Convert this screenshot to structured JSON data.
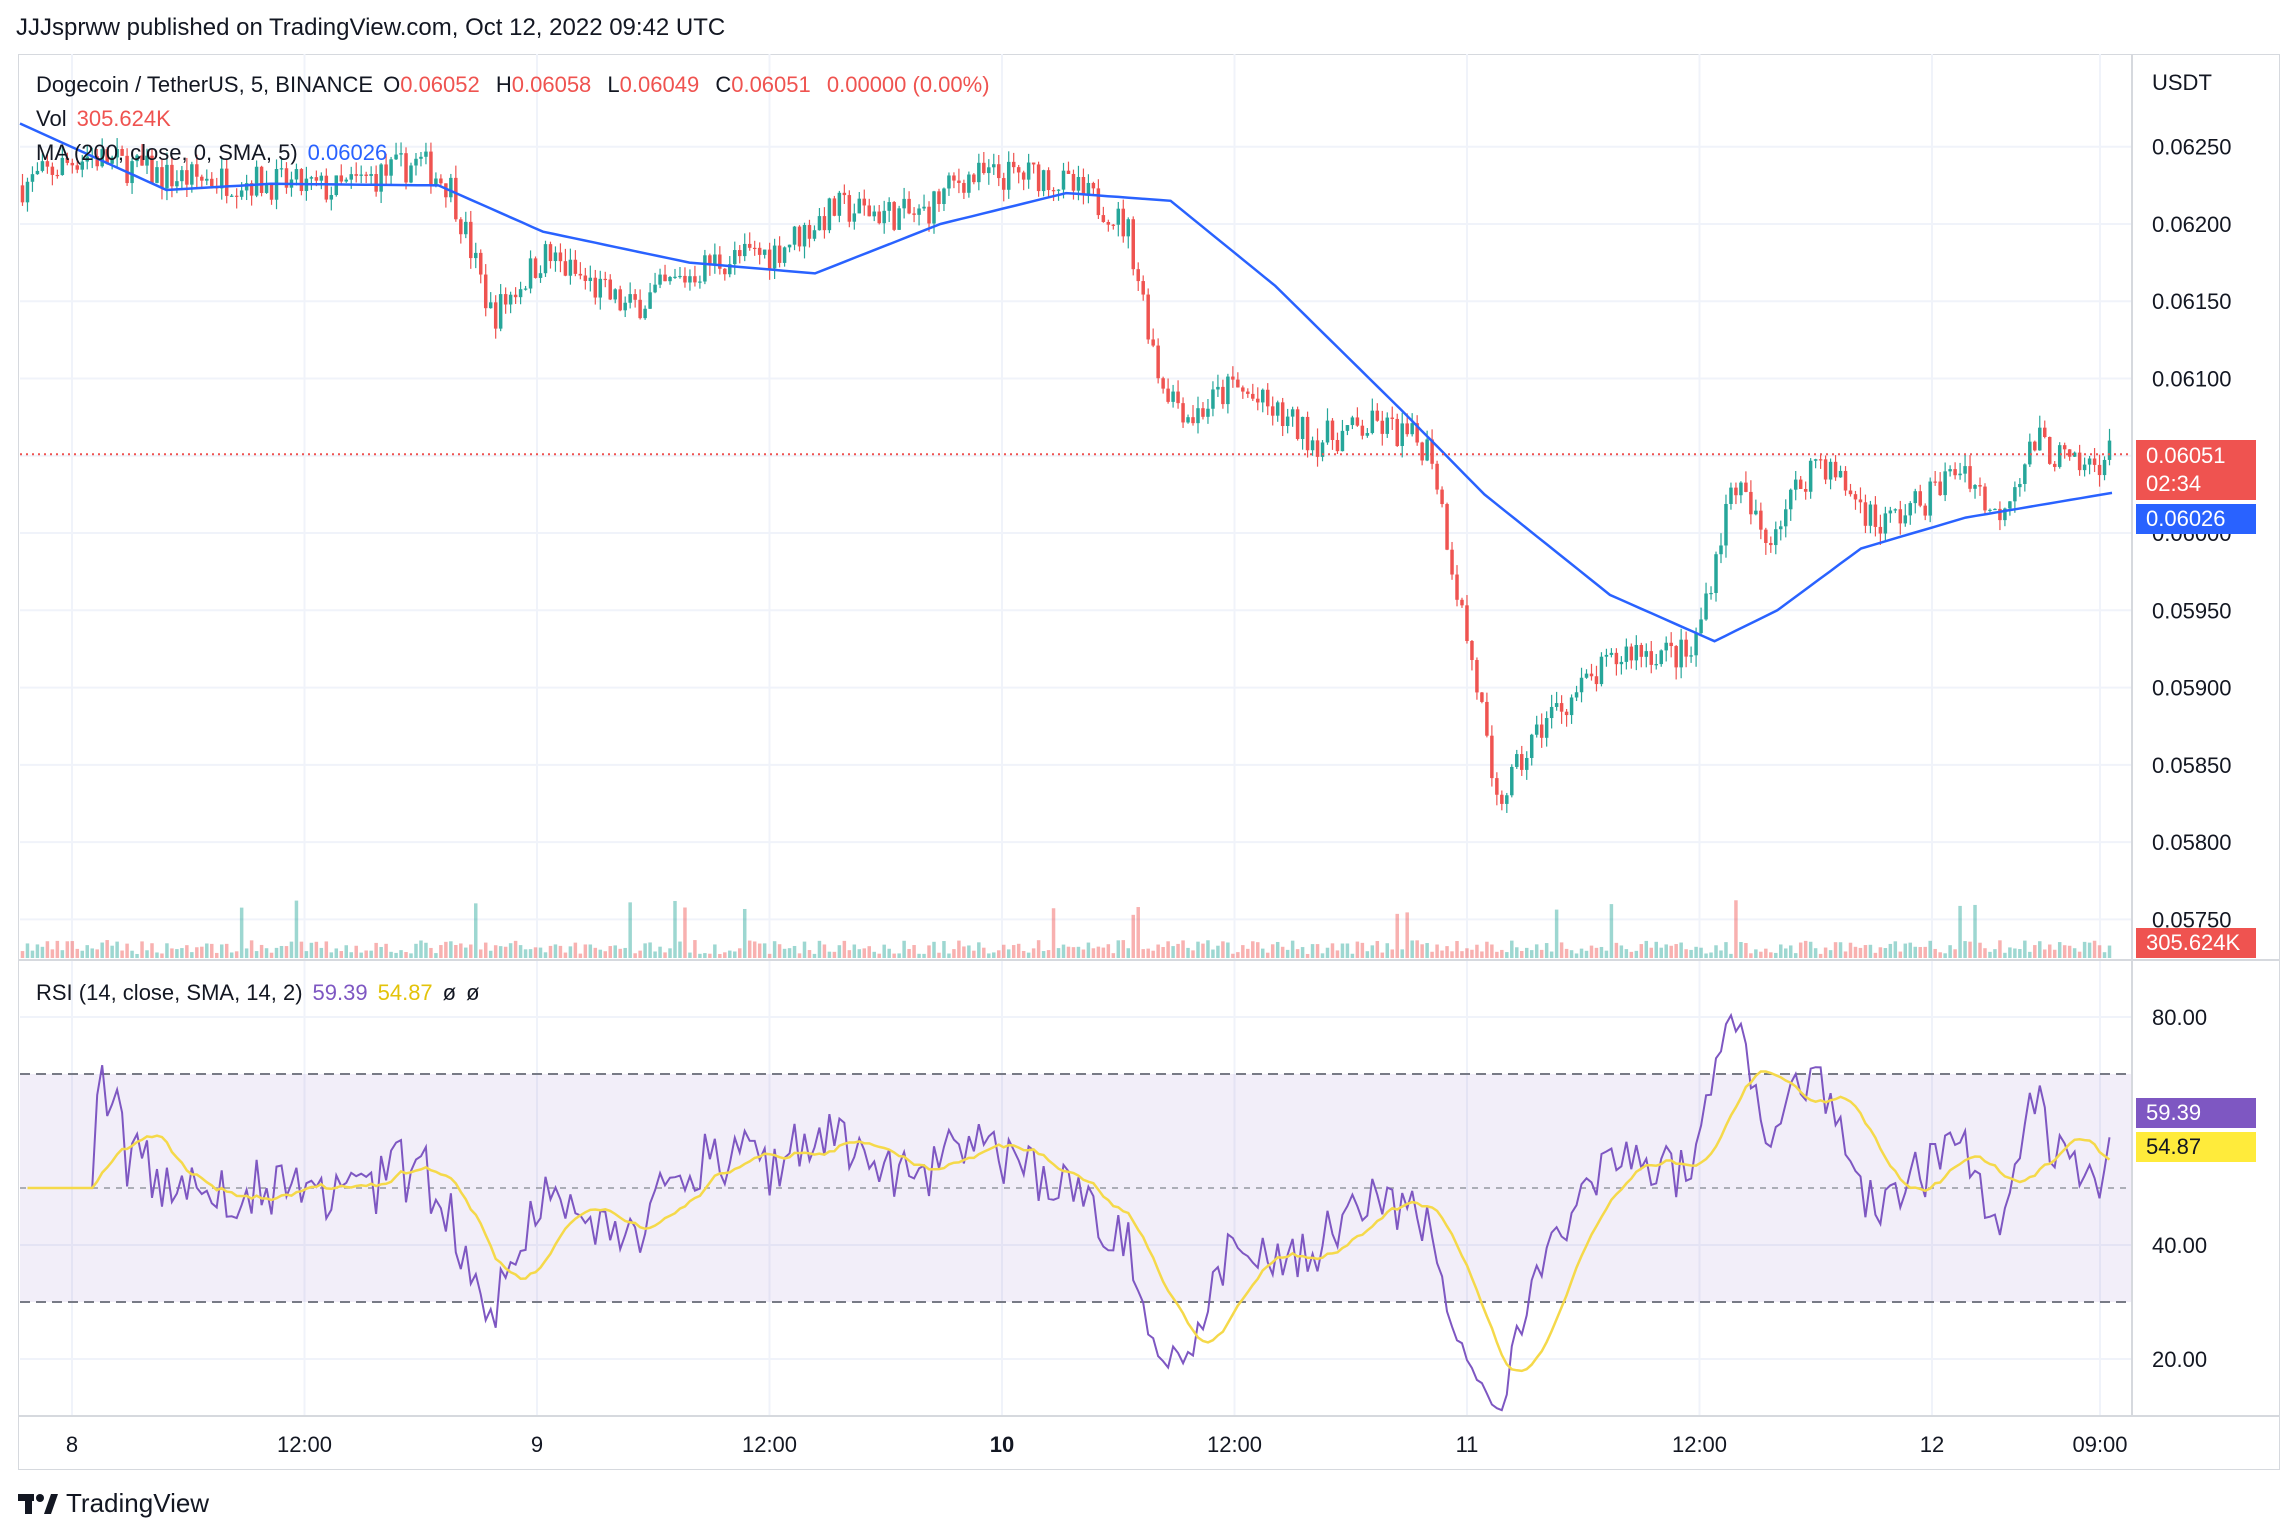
{
  "header": {
    "published_line": "JJJsprww published on TradingView.com, Oct 12, 2022 09:42 UTC"
  },
  "legend": {
    "symbol": "Dogecoin / TetherUS, 5, BINANCE",
    "o_label": "O",
    "o_value": "0.06052",
    "h_label": "H",
    "h_value": "0.06058",
    "l_label": "L",
    "l_value": "0.06049",
    "c_label": "C",
    "c_value": "0.06051",
    "change": "0.00000 (0.00%)",
    "vol_label": "Vol",
    "vol_value": "305.624K",
    "ma_label": "MA (200, close, 0, SMA, 5)",
    "ma_value": "0.06026",
    "rsi_label": "RSI (14, close, SMA, 14, 2)",
    "rsi_value": "59.39",
    "rsi_ma_value": "54.87",
    "rsi_extra1": "ø",
    "rsi_extra2": "ø"
  },
  "price_axis": {
    "currency": "USDT",
    "ticks": [
      "0.06250",
      "0.06200",
      "0.06150",
      "0.06100",
      "0.06050",
      "0.06000",
      "0.05950",
      "0.05900",
      "0.05850",
      "0.05800",
      "0.05750"
    ],
    "last_price_tag": "0.06051",
    "countdown_tag": "02:34",
    "ma_tag": "0.06026",
    "volume_tag": "305.624K"
  },
  "rsi_axis": {
    "ticks": [
      "80.00",
      "40.00",
      "20.00"
    ],
    "rsi_tag": "59.39",
    "rsi_ma_tag": "54.87"
  },
  "time_axis": {
    "labels": [
      "8",
      "12:00",
      "9",
      "12:00",
      "10",
      "12:00",
      "11",
      "12:00",
      "12",
      "09:00"
    ]
  },
  "footer": {
    "brand": "TradingView"
  },
  "colors": {
    "up": "#26a69a",
    "down": "#ef5350",
    "ma": "#2962ff",
    "rsi": "#7e57c2",
    "rsi_ma": "#f5d94a",
    "rsi_band": "#7e57c2"
  },
  "chart_data": {
    "type": "candlestick",
    "title": "Dogecoin / TetherUS, 5, BINANCE",
    "ylabel": "USDT",
    "ylim": [
      0.05725,
      0.0631
    ],
    "x_labels": [
      "8",
      "12:00",
      "9",
      "12:00",
      "10",
      "12:00",
      "11",
      "12:00",
      "12",
      "09:00"
    ],
    "price_anchors": [
      [
        0.0,
        0.06225
      ],
      [
        0.03,
        0.06245
      ],
      [
        0.07,
        0.0623
      ],
      [
        0.11,
        0.06228
      ],
      [
        0.15,
        0.06222
      ],
      [
        0.19,
        0.0624
      ],
      [
        0.205,
        0.06225
      ],
      [
        0.225,
        0.0614
      ],
      [
        0.25,
        0.0618
      ],
      [
        0.29,
        0.06145
      ],
      [
        0.33,
        0.06175
      ],
      [
        0.36,
        0.06182
      ],
      [
        0.39,
        0.0621
      ],
      [
        0.43,
        0.06205
      ],
      [
        0.45,
        0.0623
      ],
      [
        0.49,
        0.06232
      ],
      [
        0.52,
        0.0621
      ],
      [
        0.53,
        0.06195
      ],
      [
        0.545,
        0.061
      ],
      [
        0.56,
        0.06075
      ],
      [
        0.58,
        0.06095
      ],
      [
        0.62,
        0.0606
      ],
      [
        0.65,
        0.0607
      ],
      [
        0.675,
        0.06055
      ],
      [
        0.685,
        0.0598
      ],
      [
        0.7,
        0.0588
      ],
      [
        0.705,
        0.0582
      ],
      [
        0.73,
        0.0588
      ],
      [
        0.77,
        0.05925
      ],
      [
        0.8,
        0.0592
      ],
      [
        0.82,
        0.06035
      ],
      [
        0.835,
        0.05995
      ],
      [
        0.86,
        0.0605
      ],
      [
        0.89,
        0.06005
      ],
      [
        0.91,
        0.0602
      ],
      [
        0.93,
        0.06045
      ],
      [
        0.945,
        0.0601
      ],
      [
        0.965,
        0.0606
      ],
      [
        0.985,
        0.0604
      ],
      [
        1.0,
        0.06051
      ]
    ],
    "ma_anchors": [
      [
        0.0,
        0.06265
      ],
      [
        0.07,
        0.06222
      ],
      [
        0.12,
        0.06226
      ],
      [
        0.2,
        0.06225
      ],
      [
        0.25,
        0.06195
      ],
      [
        0.32,
        0.06175
      ],
      [
        0.38,
        0.06168
      ],
      [
        0.44,
        0.062
      ],
      [
        0.5,
        0.0622
      ],
      [
        0.55,
        0.06215
      ],
      [
        0.6,
        0.0616
      ],
      [
        0.66,
        0.0608
      ],
      [
        0.7,
        0.06025
      ],
      [
        0.76,
        0.0596
      ],
      [
        0.81,
        0.0593
      ],
      [
        0.84,
        0.0595
      ],
      [
        0.88,
        0.0599
      ],
      [
        0.93,
        0.0601
      ],
      [
        1.0,
        0.06026
      ]
    ],
    "rsi_ylim": [
      10,
      90
    ],
    "rsi_bands": [
      30,
      70
    ],
    "last_close": 0.06051,
    "ma_last": 0.06026,
    "rsi_last": 59.39,
    "rsi_ma_last": 54.87,
    "volume_last": "305.624K"
  }
}
